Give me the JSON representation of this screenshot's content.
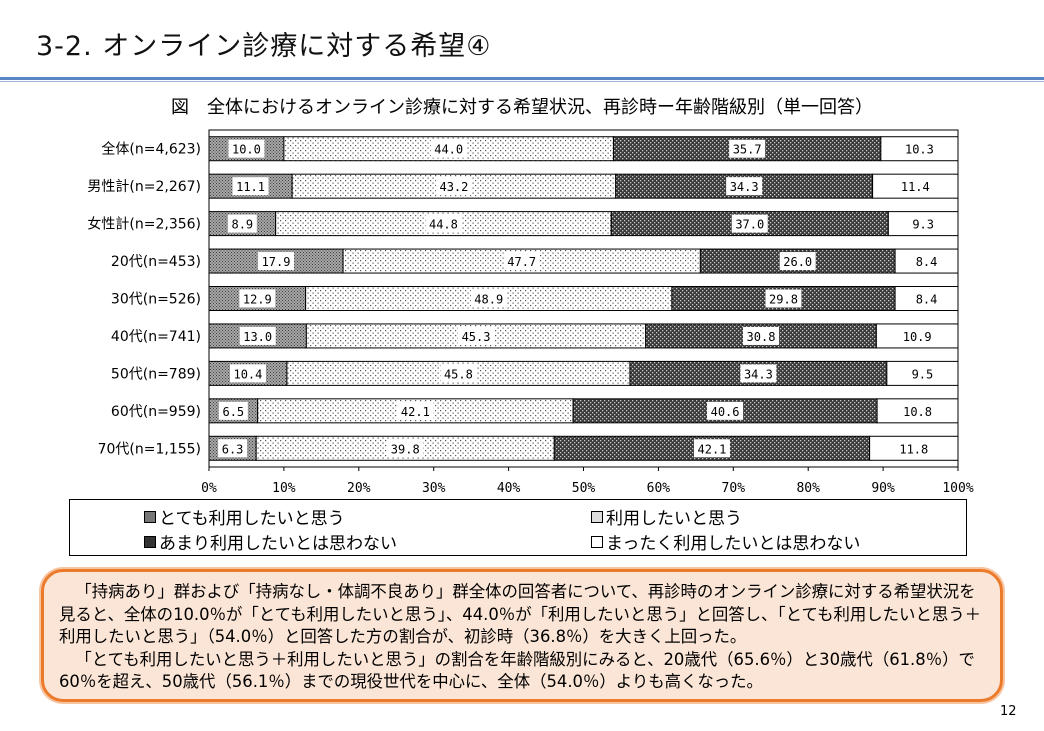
{
  "header": {
    "title": "3-2. オンライン診療に対する希望④"
  },
  "chart_data": {
    "type": "bar",
    "orientation": "horizontal",
    "stacked": "percent",
    "title": "図　全体におけるオンライン診療に対する希望状況、再診時ー年齢階級別（単一回答）",
    "categories": [
      "全体(n=4,623)",
      "男性計(n=2,267)",
      "女性計(n=2,356)",
      "20代(n=453)",
      "30代(n=526)",
      "40代(n=741)",
      "50代(n=789)",
      "60代(n=959)",
      "70代(n=1,155)"
    ],
    "series": [
      {
        "name": "とても利用したいと思う",
        "values": [
          10.0,
          11.1,
          8.9,
          17.9,
          12.9,
          13.0,
          10.4,
          6.5,
          6.3
        ],
        "labels": [
          "10.0",
          "11.1",
          "8.9",
          "17.9",
          "12.9",
          "13.0",
          "10.4",
          "6.5",
          "6.3"
        ],
        "pattern": "dense-dots"
      },
      {
        "name": "利用したいと思う",
        "values": [
          44.0,
          43.2,
          44.8,
          47.7,
          48.9,
          45.3,
          45.8,
          42.1,
          39.8
        ],
        "labels": [
          "44.0",
          "43.2",
          "44.8",
          "47.7",
          "48.9",
          "45.3",
          "45.8",
          "42.1",
          "39.8"
        ],
        "pattern": "sparse-dots"
      },
      {
        "name": "あまり利用したいとは思わない",
        "values": [
          35.7,
          34.3,
          37.0,
          26.0,
          29.8,
          30.8,
          34.3,
          40.6,
          42.1
        ],
        "labels": [
          "35.7",
          "34.3",
          "37.0",
          "26.0",
          "29.8",
          "30.8",
          "34.3",
          "40.6",
          "42.1"
        ],
        "pattern": "dark-check"
      },
      {
        "name": "まったく利用したいとは思わない",
        "values": [
          10.3,
          11.4,
          9.3,
          8.4,
          8.4,
          10.9,
          9.5,
          10.8,
          11.8
        ],
        "labels": [
          "10.3",
          "11.4",
          "9.3",
          "8.4",
          "8.4",
          "10.9",
          "9.5",
          "10.8",
          "11.8"
        ],
        "pattern": "white"
      }
    ],
    "xlim": [
      0,
      100
    ],
    "xticks": [
      "0%",
      "10%",
      "20%",
      "30%",
      "40%",
      "50%",
      "60%",
      "70%",
      "80%",
      "90%",
      "100%"
    ],
    "xlabel": "",
    "ylabel": "",
    "legend_position": "bottom",
    "grid": false
  },
  "note": {
    "paragraphs": [
      "「持病あり」群および「持病なし・体調不良あり」群全体の回答者について、再診時のオンライン診療に対する希望状況を見ると、全体の10.0％が「とても利用したいと思う」、44.0％が「利用したいと思う」と回答し、「とても利用したいと思う＋利用したいと思う」（54.0％）と回答した方の割合が、初診時（36.8％）を大きく上回った。",
      "「とても利用したいと思う＋利用したいと思う」の割合を年齢階級別にみると、20歳代（65.6％）と30歳代（61.8％）で60％を超え、50歳代（56.1％）までの現役世代を中心に、全体（54.0％）よりも高くなった。"
    ]
  },
  "footer": {
    "page_number": "12"
  }
}
